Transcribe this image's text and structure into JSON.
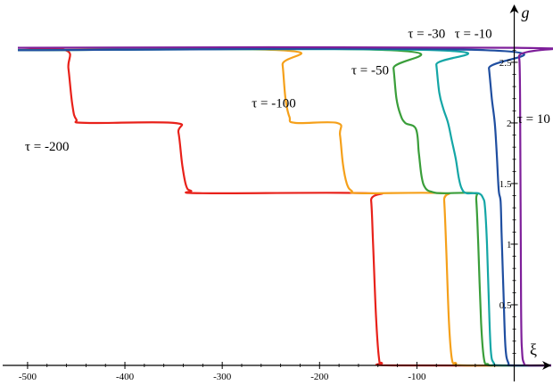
{
  "chart_data": {
    "type": "line",
    "xlabel": "ξ",
    "ylabel": "g",
    "xlim": [
      -510,
      38
    ],
    "ylim": [
      0,
      2.72
    ],
    "grid": false,
    "x_ticks": [
      {
        "value": -500,
        "label": "-500"
      },
      {
        "value": -400,
        "label": "-400"
      },
      {
        "value": -300,
        "label": "-300"
      },
      {
        "value": -200,
        "label": "-200"
      },
      {
        "value": -100,
        "label": "-100"
      }
    ],
    "y_ticks": [
      {
        "value": 0.5,
        "label": "0.5"
      },
      {
        "value": 1,
        "label": "1"
      },
      {
        "value": 1.5,
        "label": "1.5"
      },
      {
        "value": 2,
        "label": "2"
      },
      {
        "value": 2.5,
        "label": "2.5"
      }
    ],
    "series": [
      {
        "name": "τ = -200",
        "color": "#e8211a",
        "label_at": [
          -480,
          1.77
        ],
        "points": [
          [
            -510,
            2.6
          ],
          [
            -461,
            2.6
          ],
          [
            -458,
            2.45
          ],
          [
            -454,
            2.15
          ],
          [
            -450,
            2.03
          ],
          [
            -440,
            2.0
          ],
          [
            -350,
            2.0
          ],
          [
            -345,
            1.92
          ],
          [
            -341,
            1.65
          ],
          [
            -337,
            1.48
          ],
          [
            -332,
            1.44
          ],
          [
            -320,
            1.42
          ],
          [
            -150,
            1.42
          ],
          [
            -147,
            1.36
          ],
          [
            -145,
            1.0
          ],
          [
            -142,
            0.4
          ],
          [
            -139,
            0.06
          ],
          [
            -136,
            0.02
          ],
          [
            -125,
            0
          ],
          [
            38,
            0
          ]
        ]
      },
      {
        "name": "τ = -100",
        "color": "#f5a01a",
        "label_at": [
          -247,
          2.13
        ],
        "points": [
          [
            -510,
            2.6
          ],
          [
            -241,
            2.6
          ],
          [
            -238,
            2.48
          ],
          [
            -235,
            2.2
          ],
          [
            -231,
            2.05
          ],
          [
            -225,
            2.0
          ],
          [
            -182,
            2.0
          ],
          [
            -179,
            1.9
          ],
          [
            -176,
            1.66
          ],
          [
            -172,
            1.5
          ],
          [
            -167,
            1.44
          ],
          [
            -158,
            1.42
          ],
          [
            -74,
            1.42
          ],
          [
            -72,
            1.36
          ],
          [
            -70,
            1.0
          ],
          [
            -67,
            0.35
          ],
          [
            -64,
            0.05
          ],
          [
            -60,
            0.02
          ],
          [
            -52,
            0
          ],
          [
            38,
            0
          ]
        ]
      },
      {
        "name": "τ = -50",
        "color": "#3a9e3a",
        "label_at": [
          -148,
          2.4
        ],
        "points": [
          [
            -510,
            2.6
          ],
          [
            -127,
            2.6
          ],
          [
            -124,
            2.45
          ],
          [
            -121,
            2.2
          ],
          [
            -117,
            2.07
          ],
          [
            -112,
            2.0
          ],
          [
            -101,
            1.95
          ],
          [
            -98,
            1.75
          ],
          [
            -95,
            1.55
          ],
          [
            -91,
            1.46
          ],
          [
            -84,
            1.43
          ],
          [
            -74,
            1.42
          ],
          [
            -41,
            1.42
          ],
          [
            -39,
            1.36
          ],
          [
            -37,
            1.0
          ],
          [
            -34,
            0.35
          ],
          [
            -31,
            0.05
          ],
          [
            -27,
            0.01
          ],
          [
            -20,
            0
          ],
          [
            38,
            0
          ]
        ]
      },
      {
        "name": "τ = -30",
        "color": "#14a6a6",
        "label_at": [
          -90,
          2.7
        ],
        "points": [
          [
            -510,
            2.6
          ],
          [
            -82,
            2.6
          ],
          [
            -80,
            2.48
          ],
          [
            -77,
            2.25
          ],
          [
            -73,
            2.12
          ],
          [
            -68,
            2.0
          ],
          [
            -64,
            1.85
          ],
          [
            -60,
            1.7
          ],
          [
            -57,
            1.55
          ],
          [
            -54,
            1.46
          ],
          [
            -49,
            1.42
          ],
          [
            -37,
            1.42
          ],
          [
            -32,
            1.38
          ],
          [
            -30,
            1.3
          ],
          [
            -28,
            1.0
          ],
          [
            -26,
            0.5
          ],
          [
            -24,
            0.12
          ],
          [
            -21,
            0.02
          ],
          [
            -15,
            0
          ],
          [
            38,
            0
          ]
        ]
      },
      {
        "name": "τ = -10",
        "color": "#1f4ea0",
        "label_at": [
          -42,
          2.7
        ],
        "points": [
          [
            -510,
            2.6
          ],
          [
            -29,
            2.6
          ],
          [
            -26,
            2.45
          ],
          [
            -23,
            2.2
          ],
          [
            -20,
            2.0
          ],
          [
            -18,
            1.75
          ],
          [
            -16,
            1.45
          ],
          [
            -14,
            1.35
          ],
          [
            -13,
            1.1
          ],
          [
            -11,
            0.6
          ],
          [
            -9,
            0.15
          ],
          [
            -6,
            0.02
          ],
          [
            -2,
            0
          ],
          [
            38,
            0
          ]
        ]
      },
      {
        "name": "τ = 10",
        "color": "#7e1f9a",
        "label_at": [
          20,
          2.0
        ],
        "points": [
          [
            -510,
            2.62
          ],
          [
            3,
            2.62
          ],
          [
            5,
            2.55
          ],
          [
            6,
            2.2
          ],
          [
            7,
            0.5
          ],
          [
            8,
            0.12
          ],
          [
            10,
            0.02
          ],
          [
            14,
            0
          ],
          [
            38,
            0
          ]
        ]
      }
    ]
  }
}
